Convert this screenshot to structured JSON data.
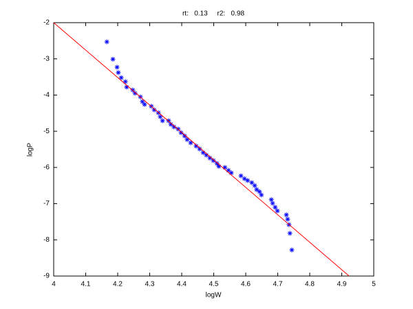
{
  "chart_data": {
    "type": "scatter",
    "title": "rt:   0.13     r2:   0.98",
    "x_label": "logW",
    "y_label": "logP",
    "xlim": [
      4,
      5
    ],
    "xticks": [
      4,
      4.1,
      4.2,
      4.3,
      4.4,
      4.5,
      4.6,
      4.7,
      4.8,
      4.9,
      5
    ],
    "ylim": [
      -9,
      -2
    ],
    "yticks": [
      -9,
      -8,
      -7,
      -6,
      -5,
      -4,
      -3,
      -2
    ],
    "grid": false,
    "series": [
      {
        "type": "scatter",
        "color": "#0000ff",
        "x": [
          4.166,
          4.185,
          4.198,
          4.202,
          4.211,
          4.224,
          4.228,
          4.247,
          4.254,
          4.271,
          4.277,
          4.284,
          4.305,
          4.314,
          4.327,
          4.333,
          4.34,
          4.359,
          4.366,
          4.376,
          4.389,
          4.398,
          4.409,
          4.417,
          4.428,
          4.445,
          4.456,
          4.467,
          4.477,
          4.488,
          4.499,
          4.51,
          4.516,
          4.535,
          4.546,
          4.555,
          4.585,
          4.596,
          4.606,
          4.619,
          4.628,
          4.634,
          4.643,
          4.649,
          4.68,
          4.684,
          4.692,
          4.699,
          4.727,
          4.731,
          4.735,
          4.738,
          4.744
        ],
        "values": [
          -2.53,
          -3.01,
          -3.23,
          -3.38,
          -3.52,
          -3.63,
          -3.78,
          -3.86,
          -3.95,
          -4.05,
          -4.18,
          -4.26,
          -4.31,
          -4.41,
          -4.49,
          -4.6,
          -4.71,
          -4.71,
          -4.81,
          -4.88,
          -4.94,
          -5.04,
          -5.13,
          -5.23,
          -5.32,
          -5.41,
          -5.49,
          -5.59,
          -5.66,
          -5.74,
          -5.81,
          -5.89,
          -5.97,
          -6.0,
          -6.08,
          -6.15,
          -6.23,
          -6.31,
          -6.36,
          -6.42,
          -6.5,
          -6.61,
          -6.67,
          -6.76,
          -6.89,
          -6.99,
          -7.1,
          -7.2,
          -7.31,
          -7.43,
          -7.58,
          -7.82,
          -8.28
        ]
      },
      {
        "type": "line",
        "color": "#ff0000",
        "x": [
          4,
          4.923
        ],
        "values": [
          -2,
          -9
        ]
      }
    ]
  }
}
